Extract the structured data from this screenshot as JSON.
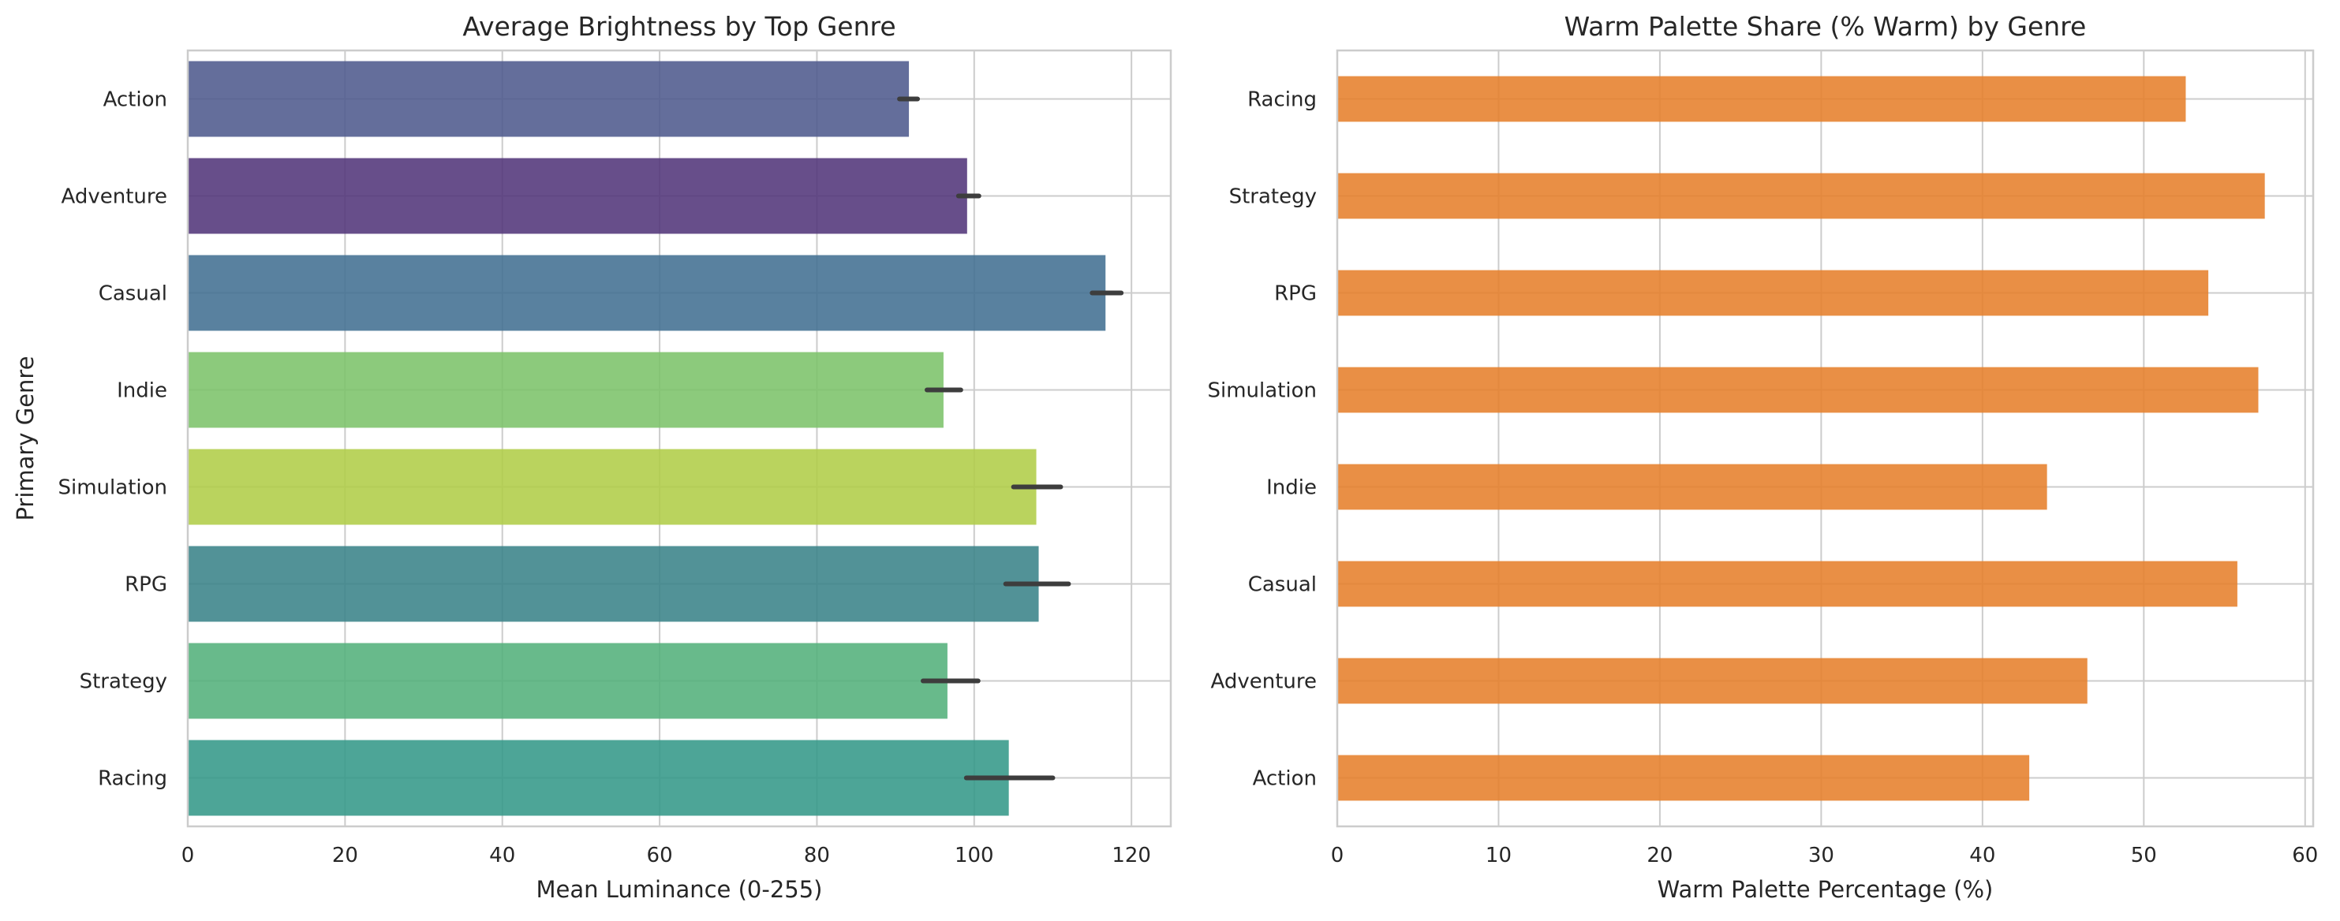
{
  "chart_data": [
    {
      "type": "bar",
      "orientation": "horizontal",
      "title": "Average Brightness by Top Genre",
      "xlabel": "Mean Luminance (0-255)",
      "ylabel": "Primary Genre",
      "xlim": [
        0,
        125
      ],
      "xticks": [
        0,
        20,
        40,
        60,
        80,
        100,
        120
      ],
      "grid": true,
      "categories": [
        "Action",
        "Adventure",
        "Casual",
        "Indie",
        "Simulation",
        "RPG",
        "Strategy",
        "Racing"
      ],
      "values": [
        91.7,
        99.1,
        116.7,
        96.1,
        107.9,
        108.2,
        96.6,
        104.4
      ],
      "error_low": [
        90.5,
        98.0,
        115.0,
        94.0,
        105.0,
        104.0,
        93.5,
        99.0
      ],
      "error_high": [
        92.8,
        100.6,
        118.7,
        98.3,
        111.0,
        112.0,
        100.5,
        110.0
      ],
      "colors": [
        "#4e5a8d",
        "#52367a",
        "#426f92",
        "#7cc36a",
        "#b0cd48",
        "#3a8389",
        "#53b07b",
        "#349889"
      ]
    },
    {
      "type": "bar",
      "orientation": "horizontal",
      "title": "Warm Palette Share (% Warm) by Genre",
      "xlabel": "Warm Palette Percentage (%)",
      "ylabel": "",
      "xlim": [
        0,
        60.5
      ],
      "xticks": [
        0,
        10,
        20,
        30,
        40,
        50,
        60
      ],
      "grid": true,
      "categories": [
        "Racing",
        "Strategy",
        "RPG",
        "Simulation",
        "Indie",
        "Casual",
        "Adventure",
        "Action"
      ],
      "values": [
        52.6,
        57.5,
        54.0,
        57.1,
        44.0,
        55.8,
        46.5,
        42.9
      ],
      "color": "#e6802b"
    }
  ]
}
